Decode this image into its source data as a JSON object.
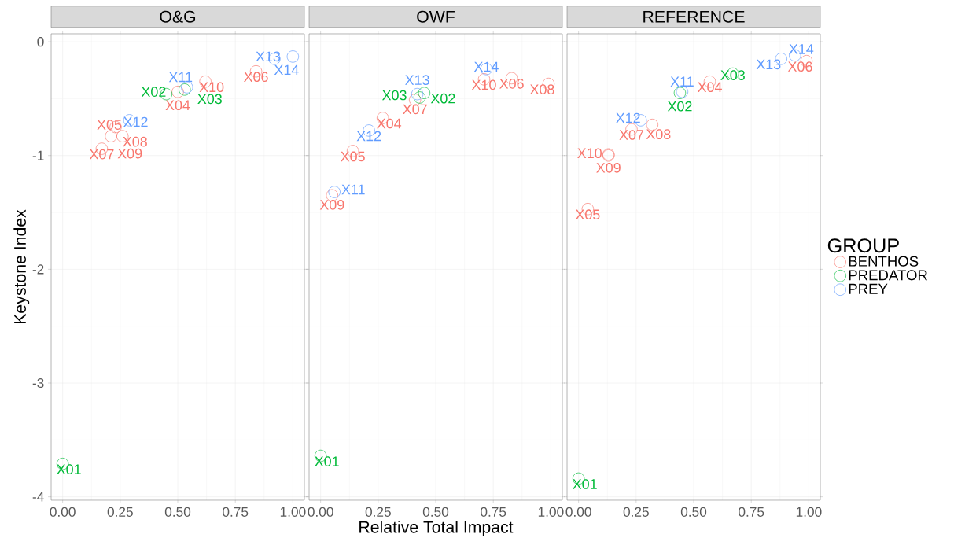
{
  "chart_data": [
    {
      "type": "scatter",
      "title": "O&G",
      "ylabel": "Keystone Index",
      "marker": "circle",
      "grid": true,
      "xlim": [
        -0.05,
        1.05
      ],
      "ylim": [
        -4.03,
        0.07
      ],
      "xticks": [
        {
          "value": 0,
          "label": "0.00"
        },
        {
          "value": 0.25,
          "label": "0.25"
        },
        {
          "value": 0.5,
          "label": "0.50"
        },
        {
          "value": 0.75,
          "label": "0.75"
        },
        {
          "value": 1,
          "label": "1.00"
        }
      ],
      "yticks": [
        -4,
        -3,
        -2,
        -1,
        0
      ],
      "series": [
        {
          "color": "#f8766d",
          "x": [
            0.5,
            0.23,
            0.84,
            0.17,
            0.26,
            0.21,
            0.62
          ],
          "values": [
            -0.44,
            -0.75,
            -0.26,
            -0.94,
            -0.83,
            -0.83,
            -0.35
          ],
          "value_labels": [
            "X04",
            "X05",
            "X06",
            "X07",
            "X08",
            "X09",
            "X10"
          ]
        },
        {
          "color": "#00ba38",
          "x": [
            0.0,
            0.45,
            0.53
          ],
          "values": [
            -3.71,
            -0.46,
            -0.42
          ],
          "value_labels": [
            "X01",
            "X02",
            "X03"
          ]
        },
        {
          "color": "#619cff",
          "x": [
            0.54,
            0.29,
            0.92,
            1.0
          ],
          "values": [
            -0.4,
            -0.69,
            -0.15,
            -0.13
          ],
          "value_labels": [
            "X11",
            "X12",
            "X13",
            "X14"
          ]
        }
      ]
    },
    {
      "type": "scatter",
      "title": "OWF",
      "xlabel": "Relative Total Impact",
      "marker": "circle",
      "grid": true,
      "tick_labels": "x",
      "xlim": [
        -0.05,
        1.05
      ],
      "ylim": [
        -4.03,
        0.07
      ],
      "xticks": [
        {
          "value": 0,
          "label": "0.00"
        },
        {
          "value": 0.25,
          "label": "0.25"
        },
        {
          "value": 0.5,
          "label": "0.50"
        },
        {
          "value": 0.75,
          "label": "0.75"
        },
        {
          "value": 1,
          "label": "1.00"
        }
      ],
      "yticks": [
        -4,
        -3,
        -2,
        -1,
        0
      ],
      "series": [
        {
          "color": "#f8766d",
          "x": [
            0.27,
            0.14,
            0.83,
            0.41,
            0.99,
            0.05,
            0.71
          ],
          "values": [
            -0.67,
            -0.96,
            -0.32,
            -0.51,
            -0.37,
            -1.35,
            -0.33
          ],
          "value_labels": [
            "X04",
            "X05",
            "X06",
            "X07",
            "X08",
            "X09",
            "X10"
          ]
        },
        {
          "color": "#00ba38",
          "x": [
            0.0,
            0.45,
            0.43
          ],
          "values": [
            -3.64,
            -0.45,
            -0.49
          ],
          "value_labels": [
            "X01",
            "X02",
            "X03"
          ]
        },
        {
          "color": "#619cff",
          "x": [
            0.06,
            0.21,
            0.42,
            0.72
          ],
          "values": [
            -1.32,
            -0.78,
            -0.46,
            -0.24
          ],
          "value_labels": [
            "X11",
            "X12",
            "X13",
            "X14"
          ]
        }
      ]
    },
    {
      "type": "scatter",
      "title": "REFERENCE",
      "legend_title": "GROUP",
      "legend": "right",
      "marker": "circle",
      "grid": true,
      "tick_labels": "x",
      "xlim": [
        -0.05,
        1.05
      ],
      "ylim": [
        -4.03,
        0.07
      ],
      "xticks": [
        {
          "value": 0,
          "label": "0.00"
        },
        {
          "value": 0.25,
          "label": "0.25"
        },
        {
          "value": 0.5,
          "label": "0.50"
        },
        {
          "value": 0.75,
          "label": "0.75"
        },
        {
          "value": 1,
          "label": "1.00"
        }
      ],
      "yticks": [
        -4,
        -3,
        -2,
        -1,
        0
      ],
      "series": [
        {
          "name": "BENTHOS",
          "color": "#f8766d",
          "x": [
            0.57,
            0.04,
            0.99,
            0.23,
            0.32,
            0.13,
            0.13
          ],
          "values": [
            -0.35,
            -1.47,
            -0.17,
            -0.77,
            -0.73,
            -0.99,
            -1.0
          ],
          "value_labels": [
            "X04",
            "X05",
            "X06",
            "X07",
            "X08",
            "X09",
            "X10"
          ]
        },
        {
          "name": "PREDATOR",
          "color": "#00ba38",
          "x": [
            0.0,
            0.44,
            0.67
          ],
          "values": [
            -3.84,
            -0.45,
            -0.28
          ],
          "value_labels": [
            "X01",
            "X02",
            "X03"
          ]
        },
        {
          "name": "PREY",
          "color": "#619cff",
          "x": [
            0.45,
            0.27,
            0.88,
            0.94
          ],
          "values": [
            -0.44,
            -0.69,
            -0.15,
            -0.12
          ],
          "value_labels": [
            "X11",
            "X12",
            "X13",
            "X14"
          ]
        }
      ]
    }
  ]
}
